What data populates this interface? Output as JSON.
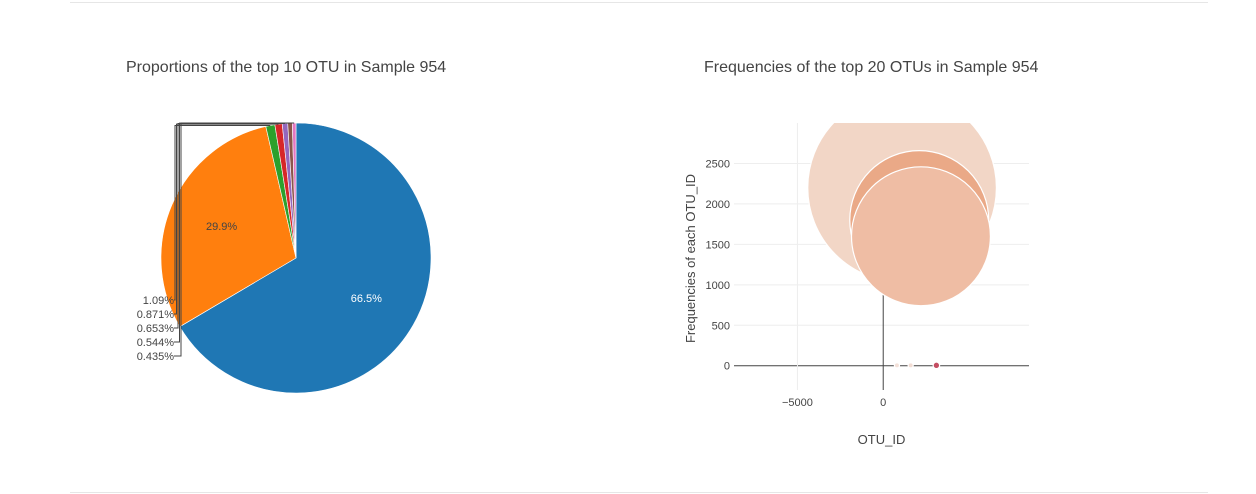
{
  "pie_panel": {
    "title": "Proportions of the top 10 OTU in Sample 954"
  },
  "bubble_panel": {
    "title": "Frequencies of the top 20 OTUs in Sample 954"
  },
  "chart_data": [
    {
      "type": "pie",
      "title": "Proportions of the top 10 OTU in Sample 954",
      "slices": [
        {
          "label": "66.5%",
          "value": 66.5,
          "color": "#1f77b4"
        },
        {
          "label": "29.9%",
          "value": 29.9,
          "color": "#ff7f0e"
        },
        {
          "label": "1.09%",
          "value": 1.09,
          "color": "#2ca02c"
        },
        {
          "label": "0.871%",
          "value": 0.871,
          "color": "#d62728"
        },
        {
          "label": "0.653%",
          "value": 0.653,
          "color": "#9467bd"
        },
        {
          "label": "0.544%",
          "value": 0.544,
          "color": "#8c564b"
        },
        {
          "label": "0.435%",
          "value": 0.435,
          "color": "#e377c2"
        }
      ]
    },
    {
      "type": "scatter",
      "title": "Frequencies of the top 20 OTUs in Sample 954",
      "xlabel": "OTU_ID",
      "ylabel": "Frequencies of each OTU_ID",
      "xlim": [
        -8700,
        8500
      ],
      "ylim": [
        -300,
        3000
      ],
      "xticks": [
        -5000,
        0
      ],
      "xtick_labels": [
        "−5000",
        "0"
      ],
      "yticks": [
        0,
        500,
        1000,
        1500,
        2000,
        2500
      ],
      "ytick_labels": [
        "0",
        "500",
        "1000",
        "1500",
        "2000",
        "2500"
      ],
      "grid": true,
      "bubbles": [
        {
          "x": 1100,
          "y": 2200,
          "size": 11000,
          "color": "#f2d6c6"
        },
        {
          "x": 2100,
          "y": 1800,
          "size": 8100,
          "color": "#eaa987"
        },
        {
          "x": 2200,
          "y": 1600,
          "size": 8100,
          "color": "#efbda4"
        },
        {
          "x": 800,
          "y": 5,
          "size": 300,
          "color": "#f3e0d8"
        },
        {
          "x": 1600,
          "y": 5,
          "size": 300,
          "color": "#f2ddd4"
        },
        {
          "x": 3100,
          "y": 5,
          "size": 380,
          "color": "#c44e62"
        }
      ]
    }
  ]
}
